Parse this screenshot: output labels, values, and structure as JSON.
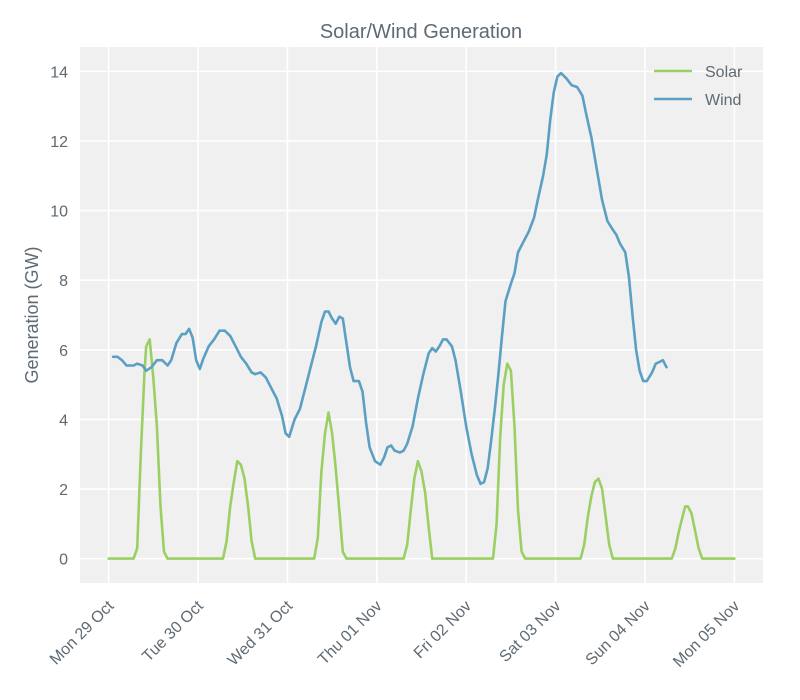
{
  "chart_data": {
    "type": "line",
    "title": "Solar/Wind Generation",
    "xlabel": "",
    "ylabel": "Generation (GW)",
    "ylim": [
      -0.7,
      14.7
    ],
    "yticks": [
      0,
      2,
      4,
      6,
      8,
      10,
      12,
      14
    ],
    "xlim_days": [
      -0.32,
      7.32
    ],
    "xticks": [
      {
        "day": 0,
        "label": "Mon 29 Oct"
      },
      {
        "day": 1,
        "label": "Tue 30 Oct"
      },
      {
        "day": 2,
        "label": "Wed 31 Oct"
      },
      {
        "day": 3,
        "label": "Thu 01 Nov"
      },
      {
        "day": 4,
        "label": "Fri 02 Nov"
      },
      {
        "day": 5,
        "label": "Sat 03 Nov"
      },
      {
        "day": 6,
        "label": "Sun 04 Nov"
      },
      {
        "day": 7,
        "label": "Mon 05 Nov"
      }
    ],
    "grid": true,
    "legend_position": "top-right",
    "series": [
      {
        "name": "Solar",
        "color": "#9ccf63",
        "points": [
          [
            0.0,
            0
          ],
          [
            0.28,
            0
          ],
          [
            0.32,
            0.3
          ],
          [
            0.36,
            3.0
          ],
          [
            0.4,
            5.3
          ],
          [
            0.42,
            6.1
          ],
          [
            0.46,
            6.3
          ],
          [
            0.5,
            5.2
          ],
          [
            0.54,
            3.8
          ],
          [
            0.58,
            1.5
          ],
          [
            0.62,
            0.2
          ],
          [
            0.66,
            0
          ],
          [
            1.0,
            0
          ],
          [
            1.28,
            0
          ],
          [
            1.32,
            0.5
          ],
          [
            1.36,
            1.5
          ],
          [
            1.4,
            2.2
          ],
          [
            1.44,
            2.8
          ],
          [
            1.48,
            2.7
          ],
          [
            1.52,
            2.3
          ],
          [
            1.56,
            1.5
          ],
          [
            1.6,
            0.5
          ],
          [
            1.64,
            0
          ],
          [
            2.0,
            0
          ],
          [
            2.3,
            0
          ],
          [
            2.34,
            0.6
          ],
          [
            2.38,
            2.5
          ],
          [
            2.42,
            3.6
          ],
          [
            2.46,
            4.2
          ],
          [
            2.5,
            3.6
          ],
          [
            2.54,
            2.6
          ],
          [
            2.58,
            1.4
          ],
          [
            2.62,
            0.2
          ],
          [
            2.66,
            0
          ],
          [
            3.0,
            0
          ],
          [
            3.3,
            0
          ],
          [
            3.34,
            0.4
          ],
          [
            3.38,
            1.4
          ],
          [
            3.42,
            2.3
          ],
          [
            3.46,
            2.8
          ],
          [
            3.5,
            2.5
          ],
          [
            3.54,
            1.9
          ],
          [
            3.58,
            0.9
          ],
          [
            3.62,
            0
          ],
          [
            4.0,
            0
          ],
          [
            4.3,
            0
          ],
          [
            4.34,
            1.0
          ],
          [
            4.38,
            3.5
          ],
          [
            4.42,
            5.0
          ],
          [
            4.46,
            5.6
          ],
          [
            4.5,
            5.4
          ],
          [
            4.54,
            3.8
          ],
          [
            4.58,
            1.4
          ],
          [
            4.62,
            0.2
          ],
          [
            4.66,
            0
          ],
          [
            5.0,
            0
          ],
          [
            5.28,
            0
          ],
          [
            5.32,
            0.4
          ],
          [
            5.36,
            1.2
          ],
          [
            5.4,
            1.8
          ],
          [
            5.44,
            2.2
          ],
          [
            5.48,
            2.3
          ],
          [
            5.52,
            2.0
          ],
          [
            5.56,
            1.2
          ],
          [
            5.6,
            0.4
          ],
          [
            5.64,
            0
          ],
          [
            6.0,
            0
          ],
          [
            6.3,
            0
          ],
          [
            6.34,
            0.3
          ],
          [
            6.38,
            0.8
          ],
          [
            6.42,
            1.2
          ],
          [
            6.45,
            1.5
          ],
          [
            6.48,
            1.5
          ],
          [
            6.52,
            1.3
          ],
          [
            6.56,
            0.8
          ],
          [
            6.6,
            0.3
          ],
          [
            6.64,
            0
          ],
          [
            7.0,
            0
          ]
        ]
      },
      {
        "name": "Wind",
        "color": "#5b9fc2",
        "points": [
          [
            0.05,
            5.8
          ],
          [
            0.1,
            5.8
          ],
          [
            0.15,
            5.7
          ],
          [
            0.2,
            5.55
          ],
          [
            0.28,
            5.55
          ],
          [
            0.32,
            5.6
          ],
          [
            0.38,
            5.55
          ],
          [
            0.42,
            5.4
          ],
          [
            0.48,
            5.5
          ],
          [
            0.54,
            5.7
          ],
          [
            0.6,
            5.7
          ],
          [
            0.66,
            5.55
          ],
          [
            0.7,
            5.7
          ],
          [
            0.76,
            6.2
          ],
          [
            0.82,
            6.45
          ],
          [
            0.86,
            6.45
          ],
          [
            0.9,
            6.6
          ],
          [
            0.94,
            6.35
          ],
          [
            0.98,
            5.7
          ],
          [
            1.02,
            5.45
          ],
          [
            1.06,
            5.75
          ],
          [
            1.12,
            6.1
          ],
          [
            1.18,
            6.3
          ],
          [
            1.24,
            6.55
          ],
          [
            1.3,
            6.55
          ],
          [
            1.36,
            6.4
          ],
          [
            1.42,
            6.1
          ],
          [
            1.48,
            5.8
          ],
          [
            1.54,
            5.6
          ],
          [
            1.6,
            5.35
          ],
          [
            1.64,
            5.3
          ],
          [
            1.7,
            5.35
          ],
          [
            1.76,
            5.2
          ],
          [
            1.82,
            4.9
          ],
          [
            1.88,
            4.6
          ],
          [
            1.94,
            4.1
          ],
          [
            1.98,
            3.6
          ],
          [
            2.02,
            3.5
          ],
          [
            2.08,
            4.0
          ],
          [
            2.14,
            4.3
          ],
          [
            2.2,
            4.9
          ],
          [
            2.26,
            5.5
          ],
          [
            2.32,
            6.1
          ],
          [
            2.38,
            6.8
          ],
          [
            2.42,
            7.1
          ],
          [
            2.46,
            7.1
          ],
          [
            2.5,
            6.9
          ],
          [
            2.54,
            6.75
          ],
          [
            2.58,
            6.95
          ],
          [
            2.62,
            6.9
          ],
          [
            2.66,
            6.2
          ],
          [
            2.7,
            5.5
          ],
          [
            2.74,
            5.1
          ],
          [
            2.8,
            5.1
          ],
          [
            2.84,
            4.8
          ],
          [
            2.88,
            3.9
          ],
          [
            2.92,
            3.2
          ],
          [
            2.98,
            2.8
          ],
          [
            3.04,
            2.7
          ],
          [
            3.08,
            2.9
          ],
          [
            3.12,
            3.2
          ],
          [
            3.16,
            3.25
          ],
          [
            3.2,
            3.1
          ],
          [
            3.26,
            3.05
          ],
          [
            3.3,
            3.1
          ],
          [
            3.34,
            3.3
          ],
          [
            3.4,
            3.8
          ],
          [
            3.46,
            4.6
          ],
          [
            3.52,
            5.3
          ],
          [
            3.58,
            5.9
          ],
          [
            3.62,
            6.05
          ],
          [
            3.66,
            5.95
          ],
          [
            3.7,
            6.1
          ],
          [
            3.74,
            6.3
          ],
          [
            3.78,
            6.3
          ],
          [
            3.84,
            6.1
          ],
          [
            3.88,
            5.7
          ],
          [
            3.94,
            4.8
          ],
          [
            4.0,
            3.8
          ],
          [
            4.06,
            3.0
          ],
          [
            4.12,
            2.4
          ],
          [
            4.16,
            2.15
          ],
          [
            4.2,
            2.2
          ],
          [
            4.24,
            2.6
          ],
          [
            4.28,
            3.4
          ],
          [
            4.32,
            4.3
          ],
          [
            4.36,
            5.3
          ],
          [
            4.4,
            6.4
          ],
          [
            4.44,
            7.4
          ],
          [
            4.5,
            7.9
          ],
          [
            4.54,
            8.2
          ],
          [
            4.58,
            8.8
          ],
          [
            4.64,
            9.1
          ],
          [
            4.7,
            9.4
          ],
          [
            4.76,
            9.8
          ],
          [
            4.8,
            10.3
          ],
          [
            4.86,
            11.0
          ],
          [
            4.9,
            11.6
          ],
          [
            4.94,
            12.6
          ],
          [
            4.98,
            13.4
          ],
          [
            5.02,
            13.85
          ],
          [
            5.06,
            13.95
          ],
          [
            5.12,
            13.8
          ],
          [
            5.18,
            13.6
          ],
          [
            5.24,
            13.55
          ],
          [
            5.3,
            13.3
          ],
          [
            5.34,
            12.8
          ],
          [
            5.4,
            12.1
          ],
          [
            5.46,
            11.2
          ],
          [
            5.52,
            10.3
          ],
          [
            5.58,
            9.7
          ],
          [
            5.64,
            9.45
          ],
          [
            5.68,
            9.3
          ],
          [
            5.72,
            9.05
          ],
          [
            5.78,
            8.8
          ],
          [
            5.82,
            8.1
          ],
          [
            5.86,
            7.0
          ],
          [
            5.9,
            6.0
          ],
          [
            5.94,
            5.4
          ],
          [
            5.98,
            5.1
          ],
          [
            6.02,
            5.1
          ],
          [
            6.08,
            5.35
          ],
          [
            6.12,
            5.6
          ],
          [
            6.16,
            5.65
          ],
          [
            6.2,
            5.7
          ],
          [
            6.24,
            5.5
          ]
        ]
      }
    ]
  }
}
